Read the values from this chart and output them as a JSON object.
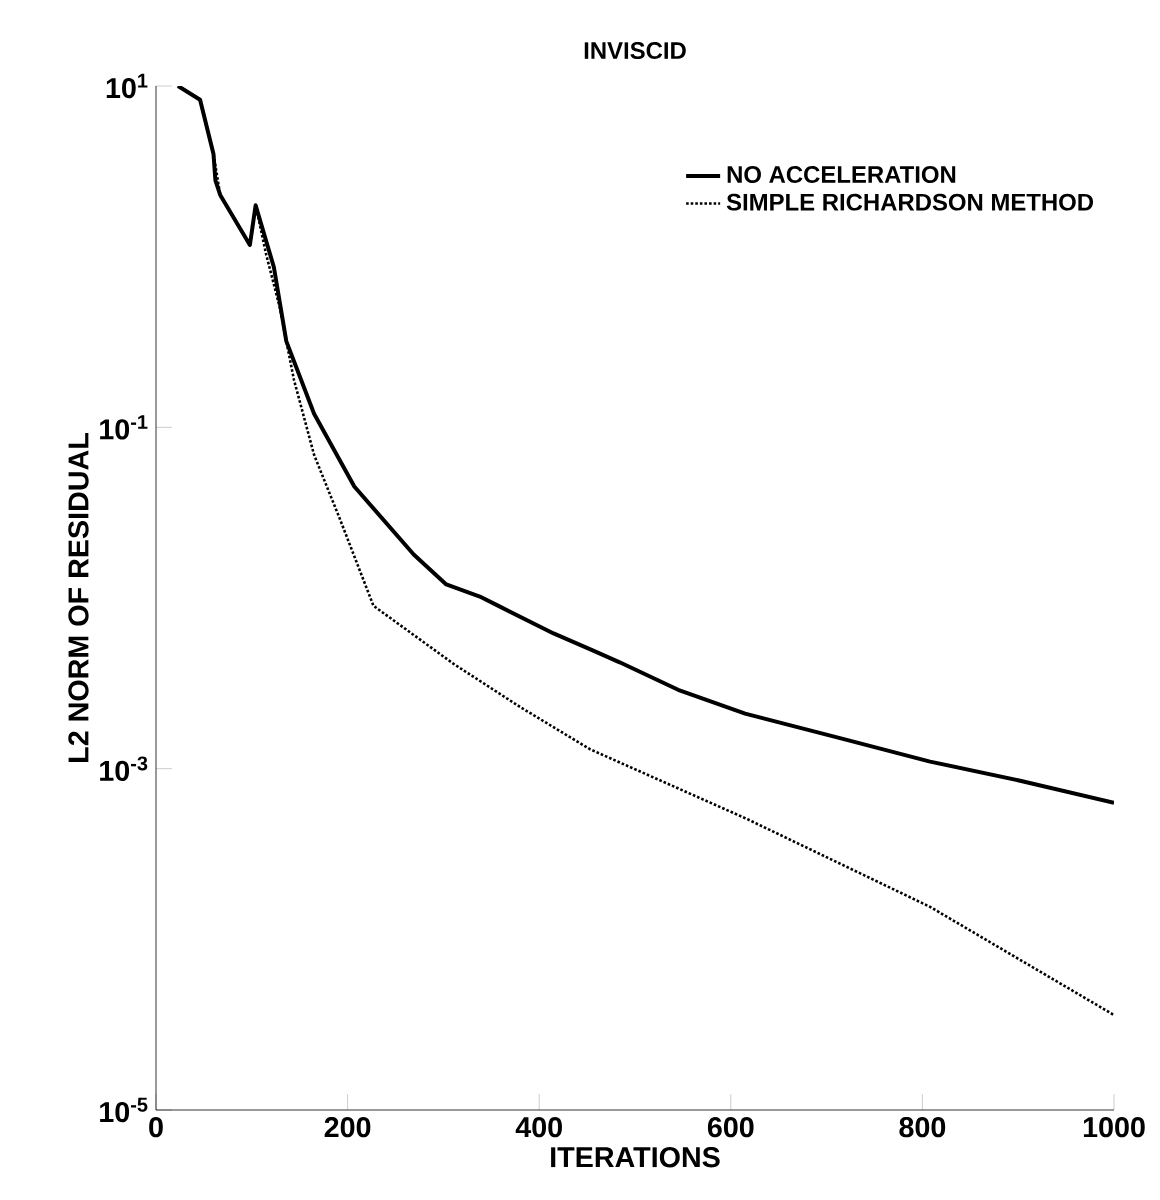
{
  "chart_data": {
    "type": "line",
    "title": "INVISCID",
    "xlabel": "ITERATIONS",
    "ylabel": "L2 NORM OF RESIDUAL",
    "log": "y",
    "xlim": [
      0,
      1000
    ],
    "xticks": [
      0,
      200,
      400,
      600,
      800,
      1000
    ],
    "ylim": [
      1e-05,
      10
    ],
    "yticks": [
      {
        "value": 10,
        "label": "10$^{1}$"
      },
      {
        "value": 0.1,
        "label": "10$^{-1}$"
      },
      {
        "value": 0.001,
        "label": "10$^{-3}$"
      },
      {
        "value": 1e-05,
        "label": "10$^{-5}$"
      }
    ],
    "grid": false,
    "legend": "top right",
    "marker": "none",
    "series": [
      {
        "name": "NO ACCELERATION",
        "color": "#000000",
        "line_style": "solid",
        "x": [
          23,
          46,
          60,
          62,
          67,
          98,
          104,
          123,
          136,
          165,
          207,
          269,
          303,
          338,
          359,
          415,
          457,
          484,
          545,
          615,
          716,
          808,
          902,
          1000
        ],
        "values": [
          10,
          8.3,
          4.0,
          2.8,
          2.3,
          1.17,
          2.0,
          0.87,
          0.32,
          0.12,
          0.045,
          0.018,
          0.012,
          0.0102,
          0.0089,
          0.0062,
          0.0049,
          0.0042,
          0.0029,
          0.0021,
          0.0015,
          0.0011,
          0.00085,
          0.00063
        ]
      },
      {
        "name": "SIMPLE RICHARDSON METHOD",
        "color": "#000000",
        "line_style": "dotted",
        "x": [
          23,
          46,
          60,
          67,
          98,
          104,
          115,
          129,
          144,
          165,
          192,
          227,
          311,
          380,
          453,
          616,
          808,
          1000
        ],
        "values": [
          10,
          8.3,
          4.0,
          2.3,
          1.17,
          2.0,
          1.03,
          0.51,
          0.19,
          0.069,
          0.029,
          0.009,
          0.0041,
          0.0023,
          0.0013,
          0.00051,
          0.000155,
          3.6e-05
        ]
      }
    ]
  }
}
